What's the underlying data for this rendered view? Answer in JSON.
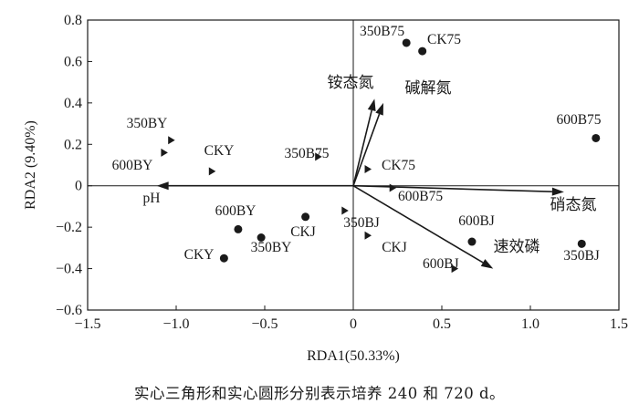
{
  "chart_data": {
    "type": "scatter",
    "title": "",
    "xlabel": "RDA1(50.33%)",
    "ylabel": "RDA2 (9.40%)",
    "xlim": [
      -1.5,
      1.5
    ],
    "ylim": [
      -0.6,
      0.8
    ],
    "xticks": [
      -1.5,
      -1.0,
      -0.5,
      0,
      0.5,
      1.0,
      1.5
    ],
    "yticks": [
      -0.6,
      -0.4,
      -0.2,
      0,
      0.2,
      0.4,
      0.6,
      0.8
    ],
    "xtick_labels": [
      "−1.5",
      "−1.0",
      "−0.5",
      "0",
      "0.5",
      "1.0",
      "1.5"
    ],
    "ytick_labels": [
      "−0.6",
      "−0.4",
      "−0.2",
      "0",
      "0.2",
      "0.4",
      "0.6",
      "0.8"
    ],
    "reference_lines": {
      "x": 0,
      "y": 0
    },
    "samples_240d": [
      {
        "label": "350BY",
        "x": -1.03,
        "y": 0.22
      },
      {
        "label": "600BY",
        "x": -1.07,
        "y": 0.16
      },
      {
        "label": "CKY",
        "x": -0.8,
        "y": 0.07
      },
      {
        "label": "350B75",
        "x": -0.2,
        "y": 0.14
      },
      {
        "label": "CK75",
        "x": 0.08,
        "y": 0.08
      },
      {
        "label": "600B75",
        "x": 0.22,
        "y": -0.01
      },
      {
        "label": "350BJ",
        "x": -0.05,
        "y": -0.12
      },
      {
        "label": "CKJ",
        "x": 0.08,
        "y": -0.24
      },
      {
        "label": "600BJ",
        "x": 0.57,
        "y": -0.4
      }
    ],
    "samples_720d": [
      {
        "label": "350B75",
        "x": 0.3,
        "y": 0.69
      },
      {
        "label": "CK75",
        "x": 0.39,
        "y": 0.65
      },
      {
        "label": "600B75",
        "x": 1.37,
        "y": 0.23
      },
      {
        "label": "600BY",
        "x": -0.65,
        "y": -0.21
      },
      {
        "label": "350BY",
        "x": -0.52,
        "y": -0.25
      },
      {
        "label": "CKJ",
        "x": -0.27,
        "y": -0.15
      },
      {
        "label": "CKY",
        "x": -0.73,
        "y": -0.35
      },
      {
        "label": "600BJ",
        "x": 0.67,
        "y": -0.27
      },
      {
        "label": "350BJ",
        "x": 1.29,
        "y": -0.28
      }
    ],
    "environmental_vectors": [
      {
        "label": "铵态氮",
        "x": 0.12,
        "y": 0.42
      },
      {
        "label": "碱解氮",
        "x": 0.17,
        "y": 0.4
      },
      {
        "label": "pH",
        "x": -1.11,
        "y": 0.0
      },
      {
        "label": "硝态氮",
        "x": 1.19,
        "y": -0.03
      },
      {
        "label": "速效磷",
        "x": 0.79,
        "y": -0.4
      }
    ]
  },
  "caption": "实心三角形和实心圆形分别表示培养 240 和 720 d。"
}
